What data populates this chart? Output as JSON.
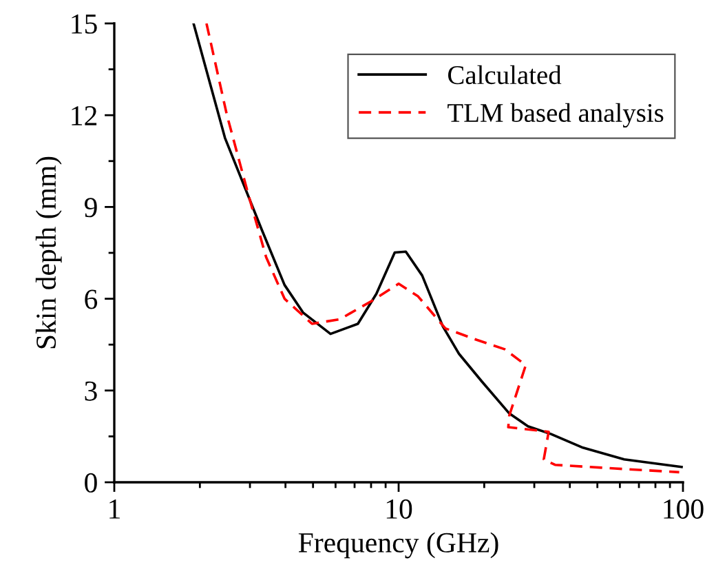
{
  "chart_data": {
    "type": "line",
    "xlabel": "Frequency (GHz)",
    "ylabel": "Skin depth (mm)",
    "log": "x",
    "xlim": [
      1,
      100
    ],
    "xticks": [
      1,
      10,
      100
    ],
    "ylim": [
      0,
      15
    ],
    "yticks": [
      0,
      3,
      6,
      9,
      12,
      15
    ],
    "legend": "top right",
    "grid": false,
    "series": [
      {
        "name": "Calculated",
        "color": "#000000",
        "line_style": "solid",
        "x": [
          1.9,
          2.45,
          3.3,
          3.97,
          4.61,
          5.76,
          7.19,
          8.35,
          9.69,
          10.6,
          12.1,
          14.3,
          16.3,
          19.6,
          24.5,
          28.5,
          34.3,
          44.5,
          62.1,
          98.9
        ],
        "values": [
          15.0,
          11.26,
          8.26,
          6.45,
          5.55,
          4.85,
          5.18,
          6.16,
          7.51,
          7.54,
          6.76,
          5.1,
          4.2,
          3.3,
          2.25,
          1.83,
          1.58,
          1.13,
          0.75,
          0.5
        ]
      },
      {
        "name": "TLM based analysis",
        "color": "#ff0000",
        "line_style": "dashed",
        "x": [
          2.11,
          2.49,
          2.95,
          3.42,
          3.97,
          4.96,
          6.21,
          8.05,
          10.0,
          11.7,
          14.6,
          18.9,
          23.6,
          28.0,
          24.5,
          24.3,
          33.7,
          32.4,
          35.5,
          57.7,
          97.0
        ],
        "values": [
          15.0,
          12.0,
          9.46,
          7.36,
          6.0,
          5.18,
          5.33,
          5.93,
          6.49,
          6.08,
          5.03,
          4.65,
          4.35,
          3.83,
          2.18,
          1.8,
          1.65,
          0.75,
          0.57,
          0.45,
          0.33
        ]
      }
    ]
  }
}
